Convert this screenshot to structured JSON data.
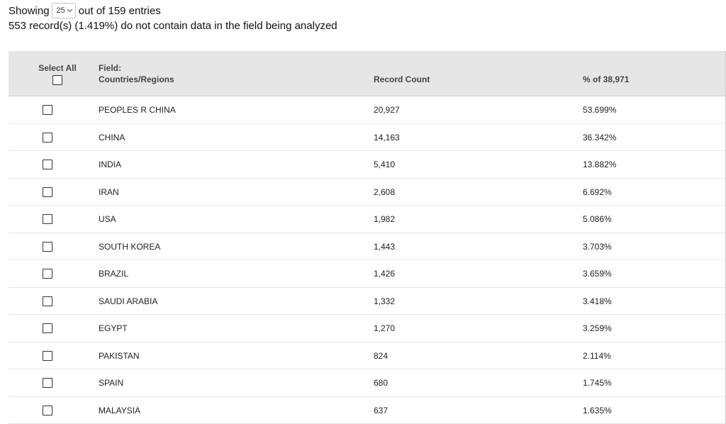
{
  "summary": {
    "showing_label": "Showing",
    "page_size": "25",
    "out_of_text": "out of 159 entries",
    "missing_text": "553 record(s) (1.419%) do not contain data in the field being analyzed"
  },
  "table": {
    "headers": {
      "select_all": "Select All",
      "field_line1": "Field:",
      "field_line2": "Countries/Regions",
      "record_count": "Record Count",
      "percent": "% of 38,971"
    },
    "rows": [
      {
        "name": "PEOPLES R CHINA",
        "count": "20,927",
        "pct": "53.699%"
      },
      {
        "name": "CHINA",
        "count": "14,163",
        "pct": "36.342%"
      },
      {
        "name": "INDIA",
        "count": "5,410",
        "pct": "13.882%"
      },
      {
        "name": "IRAN",
        "count": "2,608",
        "pct": "6.692%"
      },
      {
        "name": "USA",
        "count": "1,982",
        "pct": "5.086%"
      },
      {
        "name": "SOUTH KOREA",
        "count": "1,443",
        "pct": "3.703%"
      },
      {
        "name": "BRAZIL",
        "count": "1,426",
        "pct": "3.659%"
      },
      {
        "name": "SAUDI ARABIA",
        "count": "1,332",
        "pct": "3.418%"
      },
      {
        "name": "EGYPT",
        "count": "1,270",
        "pct": "3.259%"
      },
      {
        "name": "PAKISTAN",
        "count": "824",
        "pct": "2.114%"
      },
      {
        "name": "SPAIN",
        "count": "680",
        "pct": "1.745%"
      },
      {
        "name": "MALAYSIA",
        "count": "637",
        "pct": "1.635%"
      }
    ]
  }
}
